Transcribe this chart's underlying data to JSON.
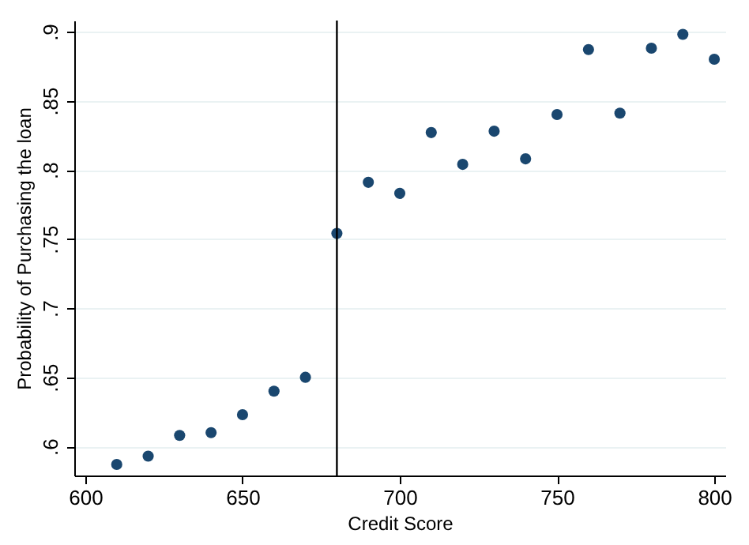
{
  "chart_data": {
    "type": "scatter",
    "xlabel": "Credit Score",
    "ylabel": "Probability of Purchasing the loan",
    "x": [
      610,
      620,
      630,
      640,
      650,
      660,
      670,
      680,
      690,
      700,
      710,
      720,
      730,
      740,
      750,
      760,
      770,
      780,
      790,
      800
    ],
    "series": [
      {
        "color": "#1a476f",
        "values": [
          0.587,
          0.593,
          0.608,
          0.61,
          0.623,
          0.64,
          0.65,
          0.754,
          0.791,
          0.783,
          0.827,
          0.804,
          0.828,
          0.808,
          0.84,
          0.887,
          0.841,
          0.888,
          0.898,
          0.88
        ]
      }
    ],
    "xlim": [
      596.5,
      803.5
    ],
    "ylim": [
      0.579,
      0.908
    ],
    "xticks": [
      600,
      650,
      700,
      750,
      800
    ],
    "yticks": [
      {
        "value": 0.6,
        "label": ".6"
      },
      {
        "value": 0.65,
        "label": ".65"
      },
      {
        "value": 0.7,
        "label": ".7"
      },
      {
        "value": 0.75,
        "label": ".75"
      },
      {
        "value": 0.8,
        "label": ".8"
      },
      {
        "value": 0.85,
        "label": ".85"
      },
      {
        "value": 0.9,
        "label": ".9"
      }
    ],
    "ref_lines": [
      {
        "axis": "x",
        "value": 680,
        "color": "#000000"
      }
    ],
    "grid": "y",
    "marker": "circle"
  }
}
